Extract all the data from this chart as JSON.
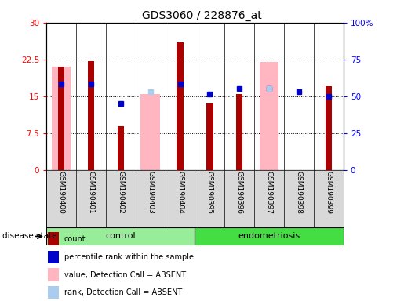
{
  "title": "GDS3060 / 228876_at",
  "samples": [
    "GSM190400",
    "GSM190401",
    "GSM190402",
    "GSM190403",
    "GSM190404",
    "GSM190395",
    "GSM190396",
    "GSM190397",
    "GSM190398",
    "GSM190399"
  ],
  "count_values": [
    21.0,
    22.2,
    9.0,
    null,
    26.0,
    13.5,
    15.5,
    null,
    null,
    17.0
  ],
  "pink_bar_values": [
    21.0,
    null,
    null,
    15.5,
    null,
    null,
    null,
    22.0,
    null,
    null
  ],
  "blue_dot_values": [
    17.5,
    17.5,
    13.5,
    null,
    17.5,
    15.5,
    16.5,
    16.5,
    16.0,
    15.0
  ],
  "light_blue_dot_values": [
    null,
    null,
    null,
    16.0,
    null,
    null,
    null,
    16.5,
    null,
    null
  ],
  "ylim_left": [
    0,
    30
  ],
  "ylim_right": [
    0,
    100
  ],
  "yticks_left": [
    0,
    7.5,
    15,
    22.5,
    30
  ],
  "ytick_labels_left": [
    "0",
    "7.5",
    "15",
    "22.5",
    "30"
  ],
  "yticks_right": [
    0,
    25,
    50,
    75,
    100
  ],
  "ytick_labels_right": [
    "0",
    "25",
    "50",
    "75",
    "100%"
  ],
  "control_color": "#98EE98",
  "endometriosis_color": "#44DD44",
  "bar_color_dark_red": "#AA0000",
  "bar_color_pink": "#FFB6C1",
  "dot_color_blue": "#0000CC",
  "dot_color_light_blue": "#AACCEE",
  "bg_color": "#D8D8D8",
  "legend_items": [
    {
      "color": "#AA0000",
      "label": "count"
    },
    {
      "color": "#0000CC",
      "label": "percentile rank within the sample"
    },
    {
      "color": "#FFB6C1",
      "label": "value, Detection Call = ABSENT"
    },
    {
      "color": "#AACCEE",
      "label": "rank, Detection Call = ABSENT"
    }
  ]
}
